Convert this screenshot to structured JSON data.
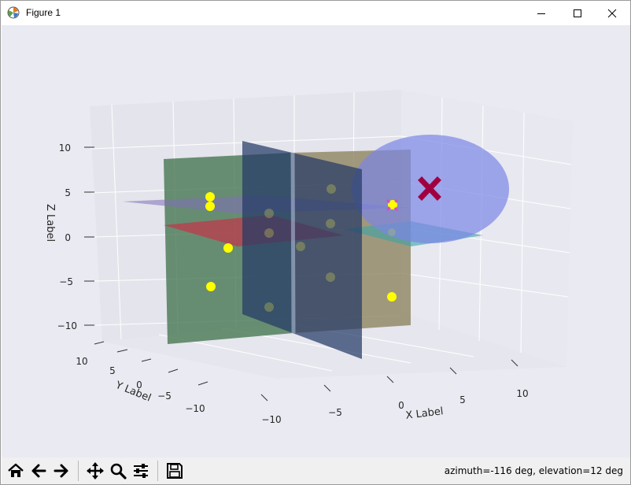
{
  "window": {
    "title": "Figure 1",
    "controls": {
      "minimize": "minimize",
      "maximize": "maximize",
      "close": "close"
    }
  },
  "plot": {
    "xlabel": "X Label",
    "ylabel": "Y Label",
    "zlabel": "Z Label",
    "x_ticks": [
      "−10",
      "−5",
      "0",
      "5",
      "10"
    ],
    "y_ticks": [
      "10",
      "5",
      "0",
      "−5",
      "−10"
    ],
    "z_ticks": [
      "10",
      "5",
      "0",
      "−5",
      "−10"
    ],
    "colors": {
      "background": "#eaeaf2",
      "pane": "#e4e4ec",
      "green_plane": "#4b7a55",
      "olive_plane": "#8f8560",
      "navy_plane": "#243a66",
      "red_plane": "#c0374a",
      "teal_plane": "#3aa3a6",
      "purple_plane": "#8070b8",
      "circle": "#7a86e6",
      "point": "#ffff00",
      "marker_x": "#a00040"
    }
  },
  "toolbar": {
    "buttons": [
      "home-icon",
      "back-icon",
      "forward-icon",
      "pan-icon",
      "zoom-icon",
      "configure-icon",
      "save-icon"
    ],
    "status": "azimuth=-116 deg, elevation=12 deg"
  }
}
